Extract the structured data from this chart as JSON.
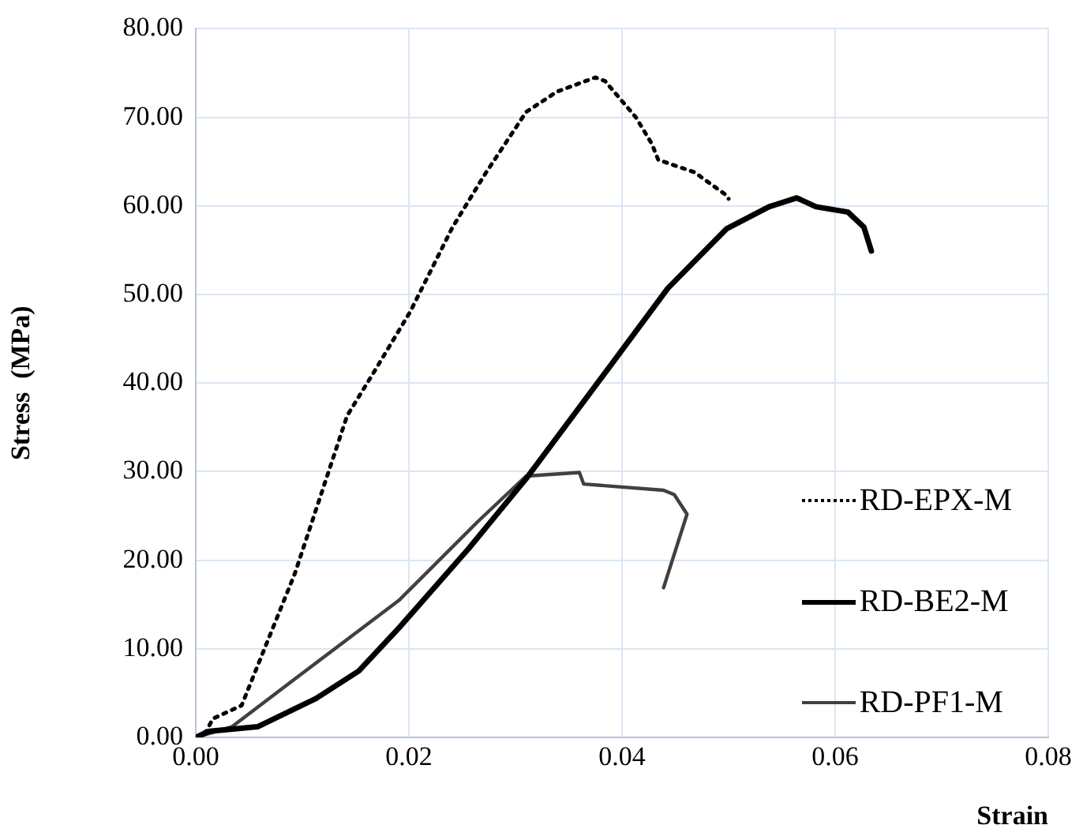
{
  "chart_data": {
    "type": "line",
    "xlabel": "Strain",
    "ylabel": "Stress  (MPa)",
    "xlim": [
      0,
      0.08
    ],
    "xticks": [
      {
        "value": 0,
        "label": "0.00"
      },
      {
        "value": 0.02,
        "label": "0.02"
      },
      {
        "value": 0.04,
        "label": "0.04"
      },
      {
        "value": 0.06,
        "label": "0.06"
      },
      {
        "value": 0.08,
        "label": "0.08"
      }
    ],
    "ylim": [
      0,
      80
    ],
    "yticks": [
      {
        "value": 0,
        "label": "0.00"
      },
      {
        "value": 10,
        "label": "10.00"
      },
      {
        "value": 20,
        "label": "20.00"
      },
      {
        "value": 30,
        "label": "30.00"
      },
      {
        "value": 40,
        "label": "40.00"
      },
      {
        "value": 50,
        "label": "50.00"
      },
      {
        "value": 60,
        "label": "60.00"
      },
      {
        "value": 70,
        "label": "70.00"
      },
      {
        "value": 80,
        "label": "80.00"
      }
    ],
    "grid": true,
    "legend": "right",
    "marker": "none",
    "series": [
      {
        "name": "RD-EPX-M",
        "color": "#000000",
        "line_style": "dotted",
        "x": [
          0,
          0.001,
          0.0016,
          0.0043,
          0.0093,
          0.0142,
          0.0167,
          0.0201,
          0.0241,
          0.0271,
          0.031,
          0.0339,
          0.0375,
          0.0384,
          0.0413,
          0.0428,
          0.0434,
          0.0468,
          0.0498,
          0.05
        ],
        "values": [
          0,
          0.7,
          2.1,
          3.6,
          18.5,
          36.3,
          41.2,
          48,
          57.6,
          63.5,
          70.6,
          72.9,
          74.5,
          74.1,
          70,
          67,
          65.2,
          63.8,
          61.2,
          60.8
        ]
      },
      {
        "name": "RD-BE2-M",
        "color": "#000000",
        "line_style": "solid",
        "x": [
          0,
          0.0013,
          0.0058,
          0.0113,
          0.0153,
          0.0191,
          0.0256,
          0.031,
          0.039,
          0.0443,
          0.0498,
          0.0538,
          0.0564,
          0.0582,
          0.0612,
          0.0627,
          0.0634
        ],
        "values": [
          0,
          0.7,
          1.2,
          4.4,
          7.5,
          12.4,
          21.3,
          29.2,
          42.1,
          50.7,
          57.4,
          59.9,
          60.9,
          59.9,
          59.3,
          57.6,
          54.9
        ]
      },
      {
        "name": "RD-PF1-M",
        "color": "#404040",
        "line_style": "solid",
        "x": [
          0,
          0.0034,
          0.0093,
          0.0191,
          0.0265,
          0.031,
          0.036,
          0.0364,
          0.0439,
          0.0449,
          0.0461,
          0.0439
        ],
        "values": [
          0,
          1.2,
          6.6,
          15.5,
          24.4,
          29.5,
          29.9,
          28.6,
          27.9,
          27.4,
          25.2,
          16.9
        ]
      }
    ]
  }
}
